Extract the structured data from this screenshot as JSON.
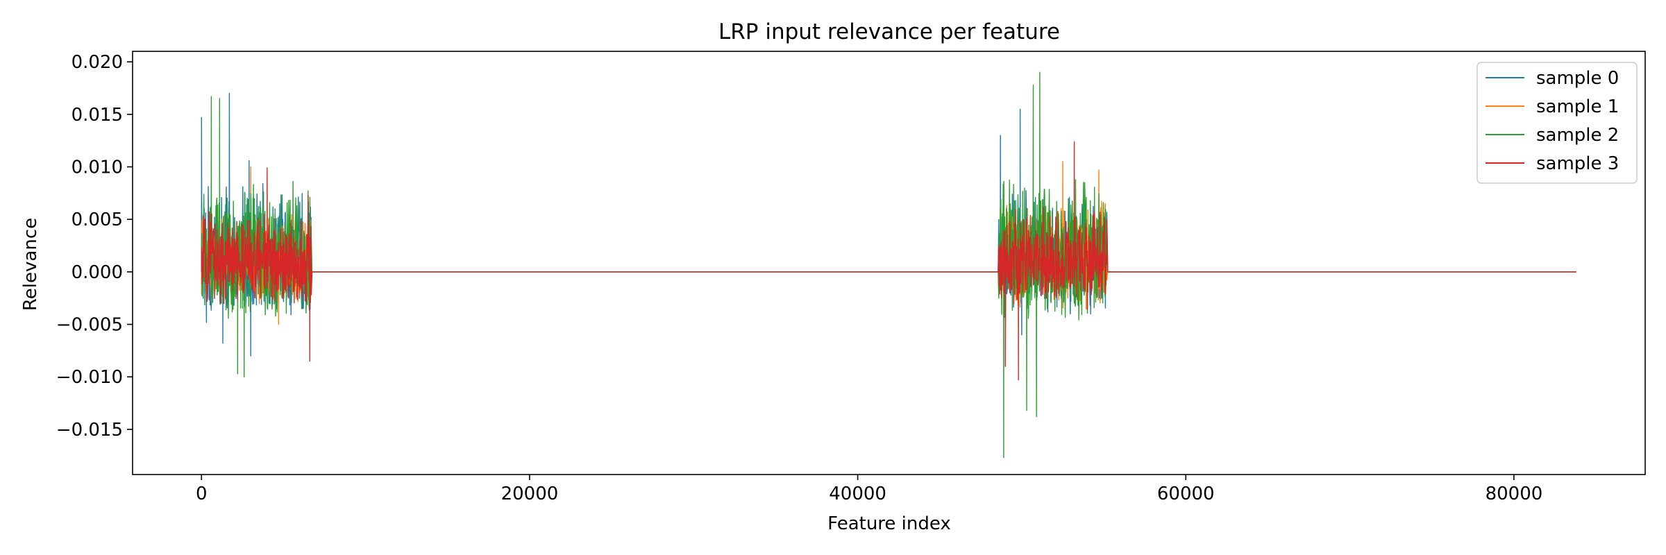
{
  "chart_data": {
    "type": "line",
    "title": "LRP input relevance per feature",
    "xlabel": "Feature index",
    "ylabel": "Relevance",
    "xlim": [
      -4200,
      88000
    ],
    "ylim": [
      -0.0193,
      0.021
    ],
    "x_ticks": [
      0,
      20000,
      40000,
      60000,
      80000
    ],
    "x_tick_labels": [
      "0",
      "20000",
      "40000",
      "60000",
      "80000"
    ],
    "y_ticks": [
      -0.015,
      -0.01,
      -0.005,
      0.0,
      0.005,
      0.01,
      0.015,
      0.02
    ],
    "y_tick_labels": [
      "−0.015",
      "−0.010",
      "−0.005",
      "0.000",
      "0.005",
      "0.010",
      "0.015",
      "0.020"
    ],
    "grid": false,
    "legend_position": "top-right",
    "x_max": 83800,
    "active_ranges": [
      [
        0,
        6700
      ],
      [
        48600,
        55200
      ]
    ],
    "series": [
      {
        "name": "sample 0",
        "color": "#1f77b4",
        "active_ranges": [
          [
            0,
            6700
          ],
          [
            48600,
            55200
          ]
        ],
        "peaks": [
          {
            "x": 0,
            "y": 0.0147
          },
          {
            "x": 300,
            "y": -0.0048
          },
          {
            "x": 1700,
            "y": 0.017
          },
          {
            "x": 1300,
            "y": -0.0068
          },
          {
            "x": 2900,
            "y": 0.0106
          },
          {
            "x": 3000,
            "y": -0.008
          },
          {
            "x": 48700,
            "y": 0.013
          },
          {
            "x": 49000,
            "y": -0.009
          },
          {
            "x": 49900,
            "y": 0.0155
          },
          {
            "x": 50000,
            "y": -0.006
          }
        ]
      },
      {
        "name": "sample 1",
        "color": "#ff7f0e",
        "active_ranges": [
          [
            0,
            6700
          ],
          [
            48600,
            55200
          ]
        ],
        "peaks": [
          {
            "x": 3000,
            "y": 0.01
          },
          {
            "x": 4700,
            "y": -0.005
          },
          {
            "x": 52500,
            "y": 0.0105
          },
          {
            "x": 52800,
            "y": -0.0025
          },
          {
            "x": 54700,
            "y": 0.0097
          }
        ]
      },
      {
        "name": "sample 2",
        "color": "#2ca02c",
        "active_ranges": [
          [
            0,
            6700
          ],
          [
            48600,
            55200
          ]
        ],
        "peaks": [
          {
            "x": 600,
            "y": 0.0167
          },
          {
            "x": 1100,
            "y": 0.0165
          },
          {
            "x": 2600,
            "y": -0.01
          },
          {
            "x": 2200,
            "y": -0.0097
          },
          {
            "x": 48900,
            "y": -0.0177
          },
          {
            "x": 51100,
            "y": 0.019
          },
          {
            "x": 50700,
            "y": 0.0178
          },
          {
            "x": 50300,
            "y": -0.0132
          },
          {
            "x": 50900,
            "y": -0.0138
          }
        ]
      },
      {
        "name": "sample 3",
        "color": "#d62728",
        "active_ranges": [
          [
            0,
            6700
          ],
          [
            48600,
            55200
          ]
        ],
        "peaks": [
          {
            "x": 4000,
            "y": 0.0099
          },
          {
            "x": 6600,
            "y": -0.0085
          },
          {
            "x": 6500,
            "y": 0.0073
          },
          {
            "x": 49000,
            "y": -0.009
          },
          {
            "x": 49800,
            "y": -0.0103
          },
          {
            "x": 53200,
            "y": 0.0124
          },
          {
            "x": 54000,
            "y": -0.0036
          }
        ]
      }
    ]
  }
}
